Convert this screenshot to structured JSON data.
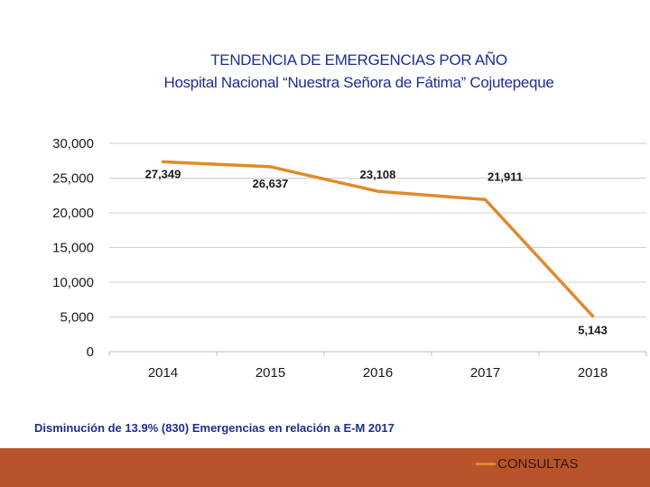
{
  "chart_data": {
    "type": "line",
    "title": "TENDENCIA DE EMERGENCIAS POR AÑO",
    "subtitle": "Hospital Nacional “Nuestra Señora de Fátima” Cojutepeque",
    "categories": [
      "2014",
      "2015",
      "2016",
      "2017",
      "2018"
    ],
    "series": [
      {
        "name": "CONSULTAS",
        "values": [
          27349,
          26637,
          23108,
          21911,
          5143
        ],
        "labels": [
          "27,349",
          "26,637",
          "23,108",
          "21,911",
          "5,143"
        ]
      }
    ],
    "ylim": [
      0,
      30000
    ],
    "yticks": [
      0,
      5000,
      10000,
      15000,
      20000,
      25000,
      30000
    ],
    "ytick_labels": [
      "0",
      "5,000",
      "10,000",
      "15,000",
      "20,000",
      "25,000",
      "30,000"
    ],
    "xlabel": "",
    "ylabel": "",
    "grid": true,
    "legend": "bottom-right",
    "line_color": "#e08a2c",
    "annotation": "Disminución de 13.9% (830) Emergencias en relación a E-M 2017"
  },
  "colors": {
    "title": "#1f2d8f",
    "footer": "#b9532a",
    "grid": "#d0d0d0"
  }
}
